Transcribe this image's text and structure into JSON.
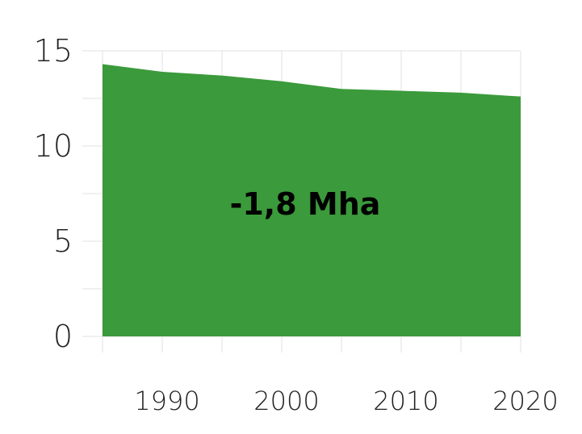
{
  "chart_data": {
    "type": "area",
    "title": "",
    "xlabel": "",
    "ylabel": "",
    "x": [
      1985,
      1990,
      1995,
      2000,
      2005,
      2010,
      2015,
      2020
    ],
    "series": [
      {
        "values": [
          14.3,
          13.9,
          13.7,
          13.4,
          13.0,
          12.9,
          12.8,
          12.6
        ]
      }
    ],
    "xlim": [
      1985,
      2020
    ],
    "ylim": [
      0,
      15
    ],
    "x_ticks": [
      1990,
      2000,
      2010,
      2020
    ],
    "x_tick_labels": [
      "1990",
      "2000",
      "2010",
      "2020"
    ],
    "y_ticks": [
      0,
      5,
      10,
      15
    ],
    "y_tick_labels": [
      "0",
      "5",
      "10",
      "15"
    ],
    "annotation": "-1,8 Mha",
    "grid": true,
    "legend": "none",
    "colors": {
      "area": "#3b9a3b",
      "grid": "#e6e6e6"
    }
  }
}
